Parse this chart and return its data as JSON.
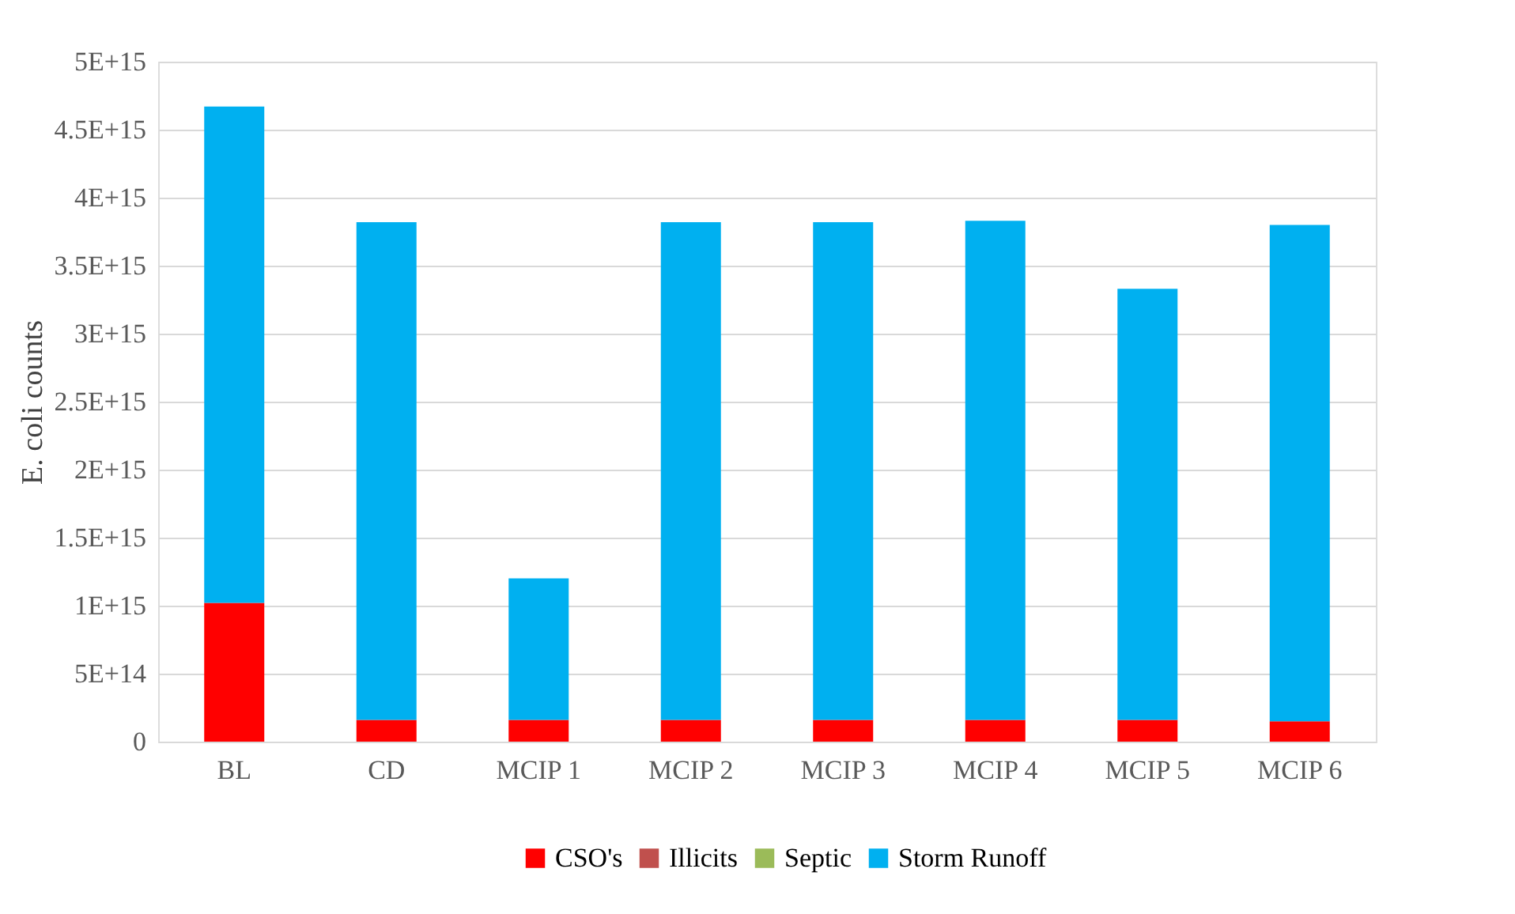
{
  "chart_data": {
    "type": "bar",
    "stacked": true,
    "ylabel": "E. coli counts",
    "categories": [
      "BL",
      "CD",
      "MCIP 1",
      "MCIP 2",
      "MCIP 3",
      "MCIP 4",
      "MCIP 5",
      "MCIP 6"
    ],
    "series": [
      {
        "name": "CSO's",
        "color": "#ff0000",
        "values": [
          1020000000000000.0,
          160000000000000.0,
          160000000000000.0,
          160000000000000.0,
          160000000000000.0,
          160000000000000.0,
          160000000000000.0,
          150000000000000.0
        ]
      },
      {
        "name": "Illicits",
        "color": "#c0504d",
        "values": [
          0,
          0,
          0,
          0,
          0,
          0,
          0,
          0
        ]
      },
      {
        "name": "Septic",
        "color": "#9bbb59",
        "values": [
          0,
          0,
          0,
          0,
          0,
          0,
          0,
          0
        ]
      },
      {
        "name": "Storm Runoff",
        "color": "#00b0f0",
        "values": [
          3650000000000000.0,
          3660000000000000.0,
          1040000000000000.0,
          3660000000000000.0,
          3660000000000000.0,
          3670000000000000.0,
          3170000000000000.0,
          3650000000000000.0
        ]
      }
    ],
    "ylim": [
      0,
      5000000000000000.0
    ],
    "yticks": [
      0,
      {
        "value": 500000000000000.0,
        "label": "5E+14"
      },
      {
        "value": 1000000000000000.0,
        "label": "1E+15"
      },
      {
        "value": 1500000000000000.0,
        "label": "1.5E+15"
      },
      {
        "value": 2000000000000000.0,
        "label": "2E+15"
      },
      {
        "value": 2500000000000000.0,
        "label": "2.5E+15"
      },
      {
        "value": 3000000000000000.0,
        "label": "3E+15"
      },
      {
        "value": 3500000000000000.0,
        "label": "3.5E+15"
      },
      {
        "value": 4000000000000000.0,
        "label": "4E+15"
      },
      {
        "value": 4500000000000000.0,
        "label": "4.5E+15"
      },
      {
        "value": 5000000000000000.0,
        "label": "5E+15"
      }
    ],
    "grid": "y",
    "legend": "bottom"
  }
}
